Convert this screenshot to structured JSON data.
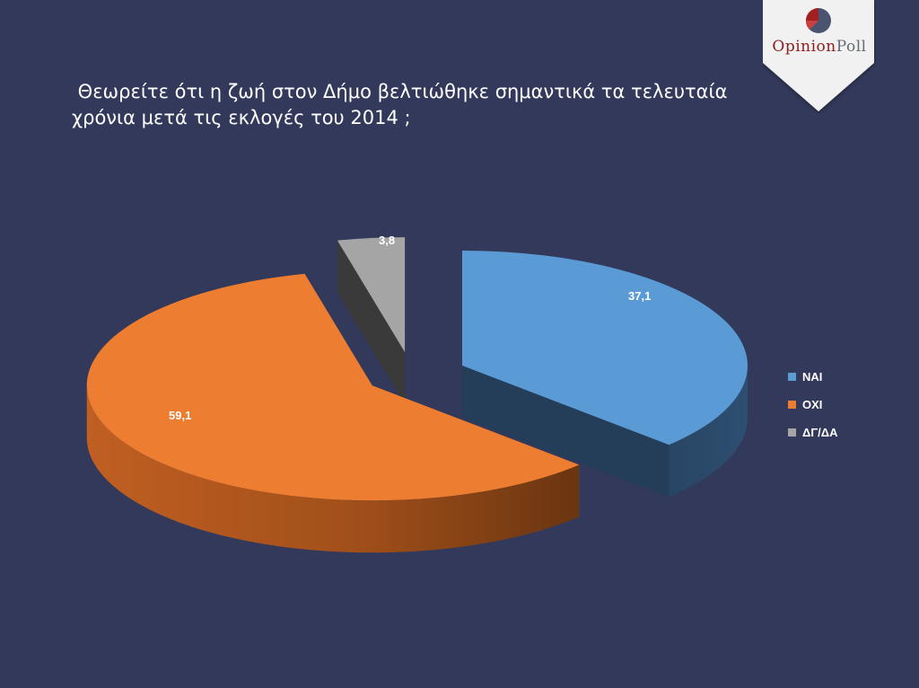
{
  "title_lines": [
    " Θεωρείτε ότι η ζωή στον Δήμο βελτιώθηκε σημαντικά τα τελευταία",
    "χρόνια μετά τις εκλογές του 2014 ;"
  ],
  "logo": {
    "opinion": "Opinion",
    "poll": "Poll",
    "icon": "opinionpoll-circle-logo-icon"
  },
  "colors": {
    "background": "#33395a",
    "nai": "#5b9bd5",
    "oxi": "#ed7d31",
    "dg": "#a5a5a5"
  },
  "chart_data": {
    "type": "pie",
    "categories": [
      "ΝΑΙ",
      "ΟΧΙ",
      "ΔΓ/ΔΑ"
    ],
    "values": [
      37.1,
      59.1,
      3.8
    ],
    "data_labels": [
      "37,1",
      "59,1",
      "3,8"
    ],
    "legend": [
      "ΝΑΙ",
      "ΟΧΙ",
      "ΔΓ/ΔΑ"
    ],
    "legend_position": "right",
    "style": "3d exploded"
  }
}
